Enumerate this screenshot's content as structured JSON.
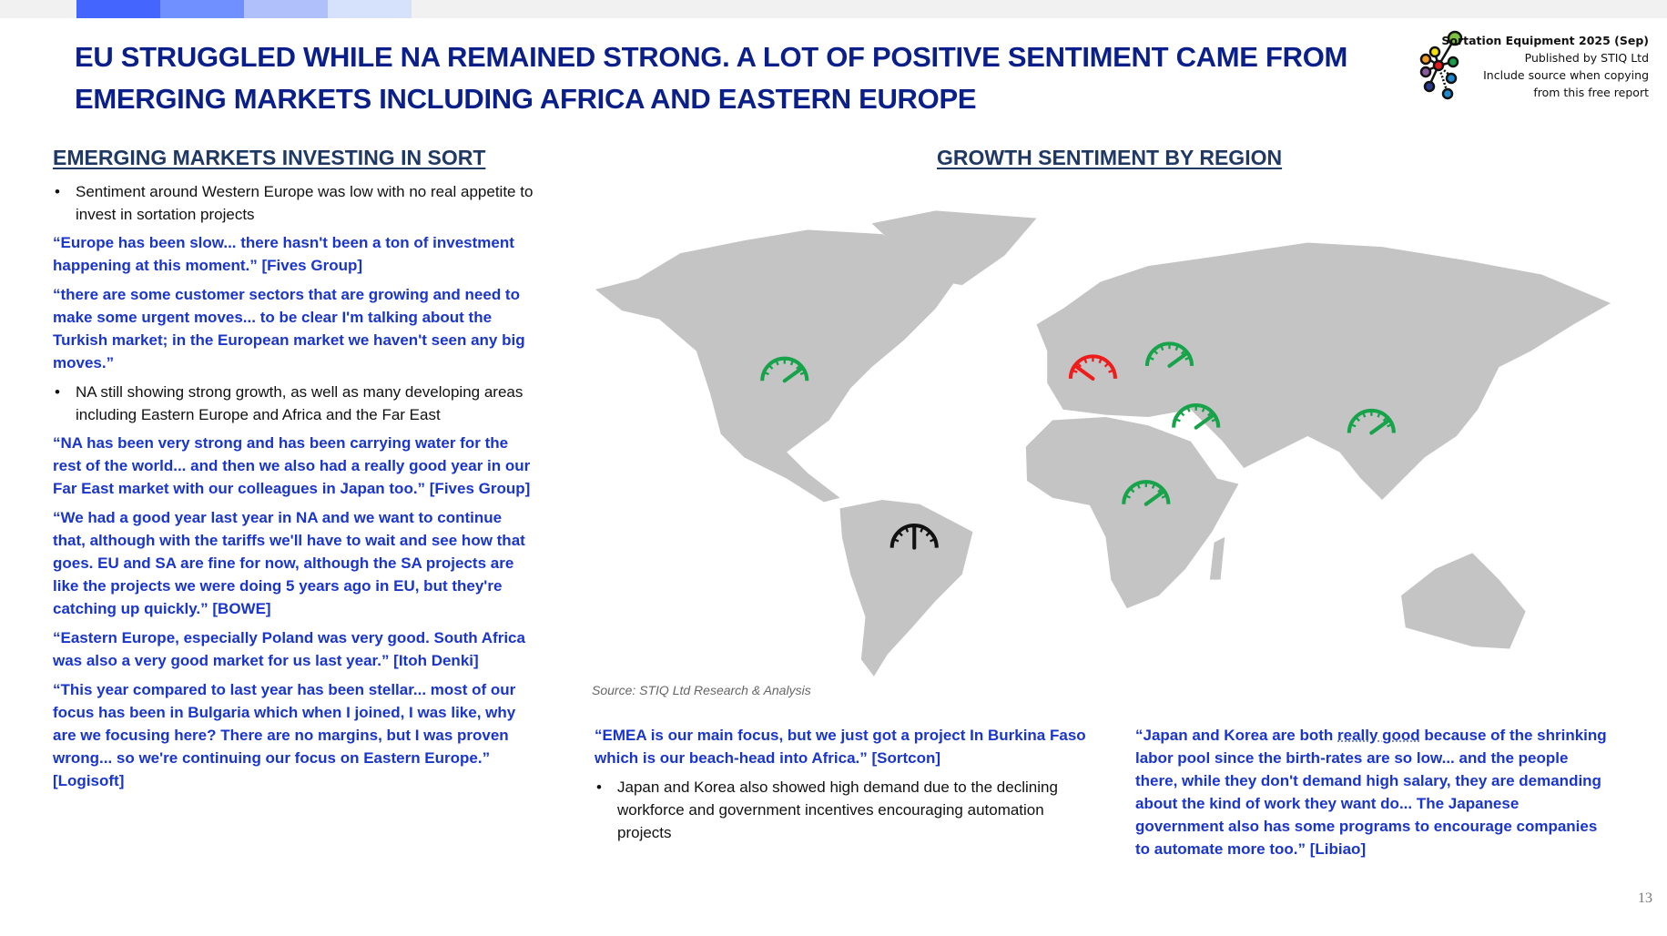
{
  "header": {
    "accent_colors": [
      "#4466ff",
      "#7090ff",
      "#b0c0fb",
      "#d6e2fb"
    ],
    "title_line1": "EU STRUGGLED WHILE NA REMAINED STRONG. A LOT OF POSITIVE SENTIMENT CAME FROM",
    "title_line2": "EMERGING MARKETS INCLUDING AFRICA AND EASTERN EUROPE",
    "publisher": {
      "report": "Sortation Equipment 2025 (Sep)",
      "published_by": "Published by STIQ Ltd",
      "note_line1": "Include source when copying",
      "note_line2": "from this free report"
    }
  },
  "left": {
    "heading": "EMERGING MARKETS INVESTING IN SORT",
    "blocks": [
      {
        "type": "bullet",
        "text": "Sentiment around Western Europe was low with no real appetite to invest in sortation projects"
      },
      {
        "type": "quote",
        "text": "“Europe has been slow... there hasn't been a ton of investment happening at this moment.” [Fives Group]"
      },
      {
        "type": "quote",
        "text": "“there are some customer sectors that are growing and need to make some urgent moves... to be clear I'm talking about the Turkish market; in the European market we haven't seen any big moves.”"
      },
      {
        "type": "bullet",
        "text": "NA still showing strong growth, as well as many developing areas including Eastern Europe and Africa and the Far East"
      },
      {
        "type": "quote",
        "text": "“NA has been very strong and has been carrying water for the rest of the world... and then we also had a really good year in our Far East market with our colleagues in Japan too.” [Fives Group]"
      },
      {
        "type": "quote",
        "text": "“We had a good year last year in NA and we want to continue that, although with the tariffs we'll have to wait and see how that goes. EU and SA are fine for now, although the SA projects are like the projects we were doing 5 years ago in EU, but they're catching up quickly.” [BOWE]"
      },
      {
        "type": "quote",
        "text": "“Eastern Europe, especially Poland was very good. South Africa was also a very good market for us last year.” [Itoh Denki]"
      },
      {
        "type": "quote",
        "text": "“This year compared to last year has been stellar... most of our focus has been in Bulgaria which when I joined, I was like, why are we focusing here? There are no margins, but I was proven wrong... so we're continuing our focus on Eastern Europe.” [Logisoft]"
      }
    ]
  },
  "map": {
    "heading": "GROWTH SENTIMENT BY REGION",
    "land_color": "#c4c4c4",
    "gauges": [
      {
        "icon": "speedometer-icon",
        "color": "#16a34a",
        "level": 0.8
      },
      {
        "icon": "speedometer-icon",
        "color": "#ef1c1c",
        "level": 0.2
      },
      {
        "icon": "speedometer-icon",
        "color": "#16a34a",
        "level": 0.8
      },
      {
        "icon": "speedometer-icon",
        "color": "#16a34a",
        "level": 0.8
      },
      {
        "icon": "speedometer-icon",
        "color": "#16a34a",
        "level": 0.8
      },
      {
        "icon": "speedometer-icon",
        "color": "#16a34a",
        "level": 0.8
      },
      {
        "icon": "speedometer-icon",
        "color": "#111111",
        "level": 0.5
      }
    ],
    "source": "Source: STIQ Ltd Research & Analysis"
  },
  "bottom": {
    "mid_quote": "“EMEA is our main focus, but we just got a project In Burkina Faso which is our beach-head into Africa.” [Sortcon]",
    "mid_bullet": "Japan and Korea also showed high demand due to the declining workforce and government incentives encouraging automation projects",
    "right_quote_pre": "“Japan and Korea are both ",
    "right_quote_mark": "really good",
    "right_quote_post": " because of the shrinking labor pool since the birth-rates are so low... and the people there, while they don't demand high salary, they are demanding about the kind of work they want do... The Japanese government also has some programs to encourage companies to automate more too.” [Libiao]"
  },
  "page_number": "13"
}
